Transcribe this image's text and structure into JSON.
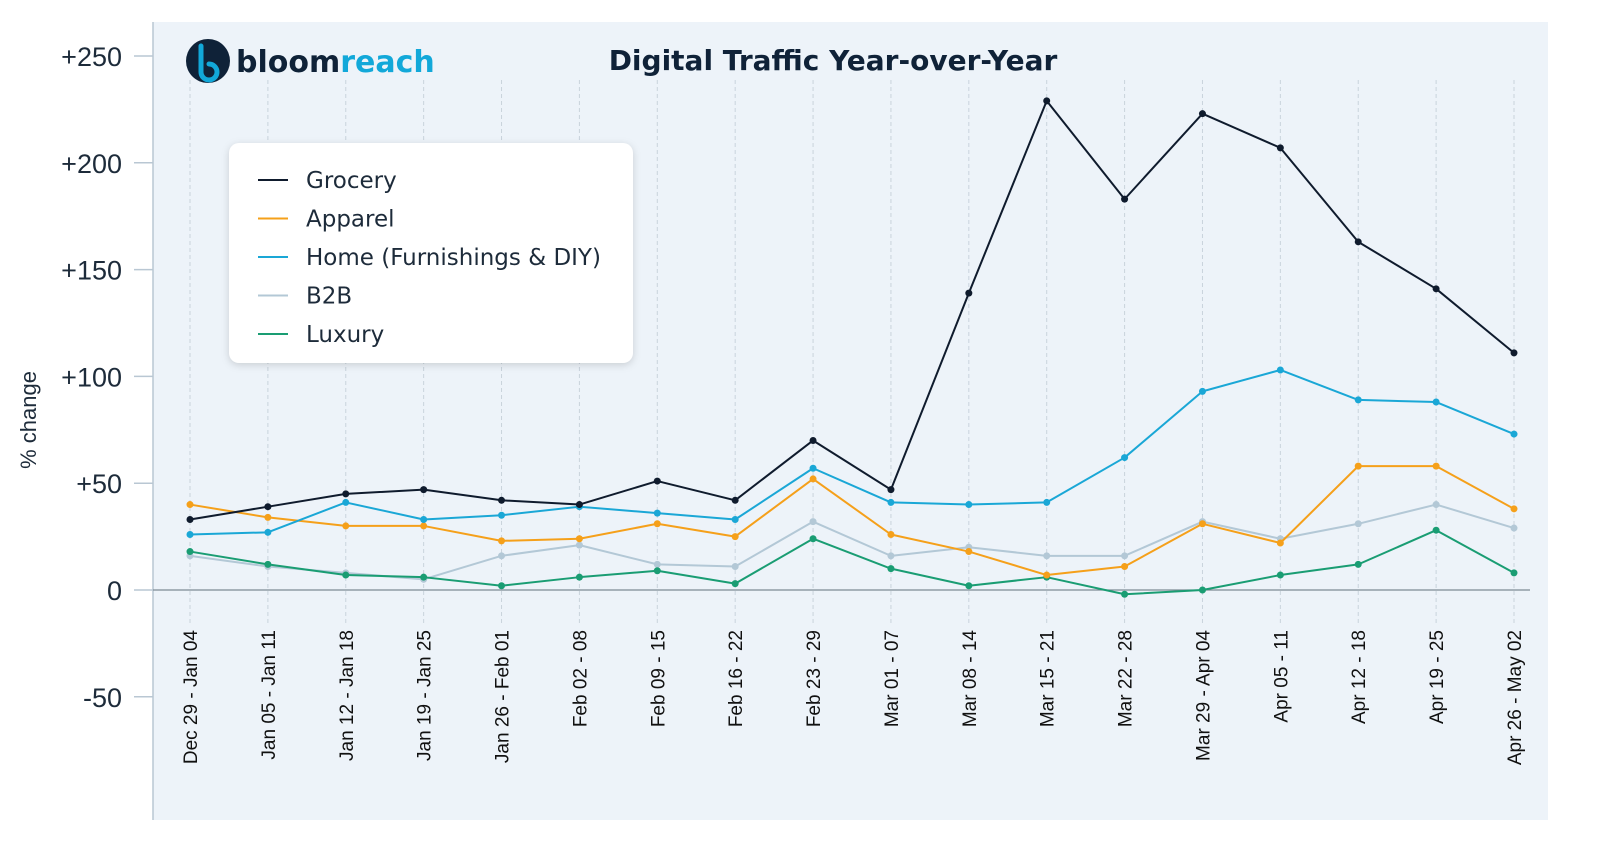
{
  "brand": {
    "name_part1": "bloom",
    "name_part2": "reach",
    "colors": {
      "dark": "#0f2238",
      "accent": "#12a8d9"
    }
  },
  "chart_data": {
    "type": "line",
    "title": "Digital Traffic Year-over-Year",
    "xlabel": "",
    "ylabel": "% change",
    "ylim": [
      -50,
      250
    ],
    "y_ticks": [
      {
        "value": 250,
        "label": "+250"
      },
      {
        "value": 200,
        "label": "+200"
      },
      {
        "value": 150,
        "label": "+150"
      },
      {
        "value": 100,
        "label": "+100"
      },
      {
        "value": 50,
        "label": "+50"
      },
      {
        "value": 0,
        "label": "0"
      },
      {
        "value": -50,
        "label": "-50"
      }
    ],
    "grid": {
      "vertical": true,
      "horizontal": false
    },
    "legend_position": "top-left",
    "categories": [
      "Dec 29 - Jan 04",
      "Jan 05 - Jan 11",
      "Jan 12 - Jan 18",
      "Jan 19 - Jan 25",
      "Jan 26 - Feb 01",
      "Feb 02 - 08",
      "Feb 09 - 15",
      "Feb 16 - 22",
      "Feb 23 - 29",
      "Mar 01 - 07",
      "Mar 08 - 14",
      "Mar 15 - 21",
      "Mar 22 - 28",
      "Mar 29 - Apr 04",
      "Apr 05 - 11",
      "Apr 12 - 18",
      "Apr 19 - 25",
      "Apr 26 - May 02"
    ],
    "series": [
      {
        "name": "Grocery",
        "color": "#0f1b2d",
        "values": [
          33,
          39,
          45,
          47,
          42,
          40,
          51,
          42,
          70,
          47,
          139,
          229,
          183,
          223,
          207,
          163,
          141,
          111
        ]
      },
      {
        "name": "Apparel",
        "color": "#f5a01a",
        "values": [
          40,
          34,
          30,
          30,
          23,
          24,
          31,
          25,
          52,
          26,
          18,
          7,
          11,
          31,
          22,
          58,
          58,
          38
        ]
      },
      {
        "name": "Home (Furnishings & DIY)",
        "color": "#1aa7d6",
        "values": [
          26,
          27,
          41,
          33,
          35,
          39,
          36,
          33,
          57,
          41,
          40,
          41,
          62,
          93,
          103,
          89,
          88,
          73
        ]
      },
      {
        "name": "B2B",
        "color": "#b3c8d6",
        "values": [
          16,
          11,
          8,
          5,
          16,
          21,
          12,
          11,
          32,
          16,
          20,
          16,
          16,
          32,
          24,
          31,
          40,
          29
        ]
      },
      {
        "name": "Luxury",
        "color": "#1a9d73",
        "values": [
          18,
          12,
          7,
          6,
          2,
          6,
          9,
          3,
          24,
          10,
          2,
          6,
          -2,
          0,
          7,
          12,
          28,
          8
        ]
      }
    ]
  }
}
